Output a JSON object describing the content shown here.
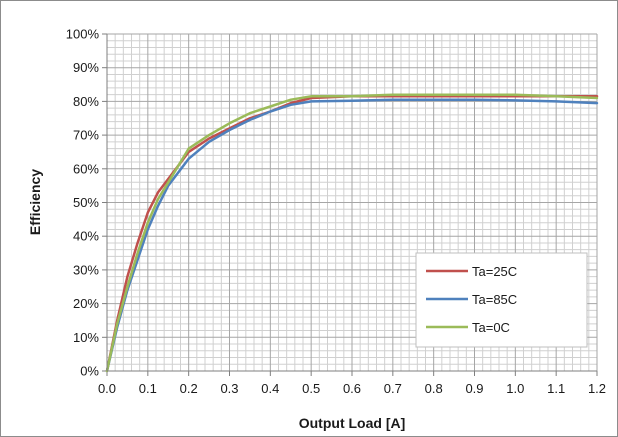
{
  "chart_data": {
    "type": "line",
    "title": "",
    "xlabel": "Output Load [A]",
    "ylabel": "Efficiency",
    "xlim": [
      0,
      1.2
    ],
    "ylim": [
      0,
      100
    ],
    "x_ticks": [
      "0.0",
      "0.1",
      "0.2",
      "0.3",
      "0.4",
      "0.5",
      "0.6",
      "0.7",
      "0.8",
      "0.9",
      "1.0",
      "1.1",
      "1.2"
    ],
    "y_ticks": [
      "0%",
      "10%",
      "20%",
      "30%",
      "40%",
      "50%",
      "60%",
      "70%",
      "80%",
      "90%",
      "100%"
    ],
    "grid": true,
    "legend_position": "bottom-right",
    "series": [
      {
        "name": "Ta=25C",
        "color": "#c0504d",
        "points": [
          [
            0.0,
            0
          ],
          [
            0.025,
            15
          ],
          [
            0.05,
            28
          ],
          [
            0.075,
            38
          ],
          [
            0.1,
            47
          ],
          [
            0.125,
            53
          ],
          [
            0.15,
            57
          ],
          [
            0.2,
            65
          ],
          [
            0.25,
            69
          ],
          [
            0.3,
            72
          ],
          [
            0.35,
            75
          ],
          [
            0.4,
            77
          ],
          [
            0.45,
            79.5
          ],
          [
            0.5,
            81
          ],
          [
            0.6,
            81.5
          ],
          [
            0.7,
            81.5
          ],
          [
            0.8,
            81.5
          ],
          [
            0.9,
            81.5
          ],
          [
            1.0,
            81.5
          ],
          [
            1.1,
            81.5
          ],
          [
            1.2,
            81.5
          ]
        ]
      },
      {
        "name": "Ta=85C",
        "color": "#4f81bd",
        "points": [
          [
            0.0,
            0
          ],
          [
            0.025,
            13
          ],
          [
            0.05,
            24
          ],
          [
            0.075,
            33
          ],
          [
            0.1,
            42
          ],
          [
            0.125,
            49
          ],
          [
            0.15,
            55
          ],
          [
            0.2,
            63
          ],
          [
            0.25,
            68
          ],
          [
            0.3,
            71.5
          ],
          [
            0.35,
            74.5
          ],
          [
            0.4,
            77
          ],
          [
            0.45,
            79
          ],
          [
            0.5,
            80
          ],
          [
            0.6,
            80.2
          ],
          [
            0.7,
            80.5
          ],
          [
            0.8,
            80.5
          ],
          [
            0.9,
            80.5
          ],
          [
            1.0,
            80.3
          ],
          [
            1.1,
            80
          ],
          [
            1.2,
            79.5
          ]
        ]
      },
      {
        "name": "Ta=0C",
        "color": "#9bbb59",
        "points": [
          [
            0.0,
            0
          ],
          [
            0.025,
            14
          ],
          [
            0.05,
            25
          ],
          [
            0.075,
            35
          ],
          [
            0.1,
            44
          ],
          [
            0.125,
            51
          ],
          [
            0.15,
            56
          ],
          [
            0.2,
            66
          ],
          [
            0.25,
            70
          ],
          [
            0.3,
            73.5
          ],
          [
            0.35,
            76.5
          ],
          [
            0.4,
            78.5
          ],
          [
            0.45,
            80.5
          ],
          [
            0.5,
            81.5
          ],
          [
            0.6,
            81.5
          ],
          [
            0.7,
            82
          ],
          [
            0.8,
            82
          ],
          [
            0.9,
            82
          ],
          [
            1.0,
            82
          ],
          [
            1.1,
            81.5
          ],
          [
            1.2,
            81
          ]
        ]
      }
    ]
  }
}
